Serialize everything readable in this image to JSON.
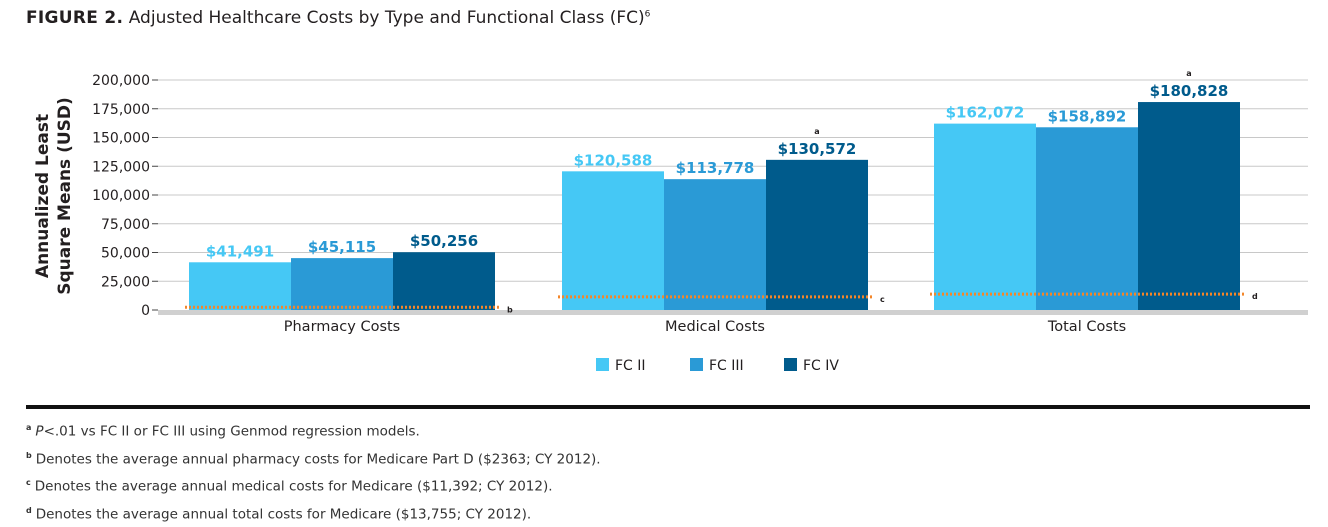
{
  "figure": {
    "label": "FIGURE 2.",
    "title": "Adjusted Healthcare Costs by Type and Functional Class (FC)",
    "title_sup": "6"
  },
  "colors": {
    "fc2": "#45c8f5",
    "fc3": "#2a9ad6",
    "fc4": "#005b8c",
    "reference_line": "#f4862a",
    "grid": "#c8c8c8",
    "axis_base": "#d0d0d0"
  },
  "chart_data": {
    "type": "bar",
    "ylabel": "Annualized Least Square Means (USD)",
    "ylabel_lines": [
      "Annualized Least",
      "Square Means (USD)"
    ],
    "ylim": [
      0,
      200000
    ],
    "yticks": [
      0,
      25000,
      50000,
      75000,
      100000,
      125000,
      150000,
      175000,
      200000
    ],
    "ytick_labels": [
      "0",
      "25,000",
      "50,000",
      "75,000",
      "100,000",
      "125,000",
      "150,000",
      "175,000",
      "200,000"
    ],
    "grid": true,
    "categories": [
      "Pharmacy Costs",
      "Medical Costs",
      "Total Costs"
    ],
    "series": [
      {
        "name": "FC II",
        "values": [
          41491,
          120588,
          162072
        ],
        "labels": [
          "$41,491",
          "$120,588",
          "$162,072"
        ]
      },
      {
        "name": "FC III",
        "values": [
          45115,
          113778,
          158892
        ],
        "labels": [
          "$45,115",
          "$113,778",
          "$158,892"
        ]
      },
      {
        "name": "FC IV",
        "values": [
          50256,
          130572,
          180828
        ],
        "labels": [
          "$50,256",
          "$130,572",
          "$180,828"
        ]
      }
    ],
    "significance_marks": [
      {
        "category": "Medical Costs",
        "series": "FC IV",
        "mark": "a"
      },
      {
        "category": "Total Costs",
        "series": "FC IV",
        "mark": "a"
      }
    ],
    "reference_lines": [
      {
        "category": "Pharmacy Costs",
        "value": 2363,
        "mark": "b"
      },
      {
        "category": "Medical Costs",
        "value": 11392,
        "mark": "c"
      },
      {
        "category": "Total Costs",
        "value": 13755,
        "mark": "d"
      }
    ],
    "legend": [
      "FC II",
      "FC III",
      "FC IV"
    ],
    "legend_position": "bottom-center"
  },
  "footnotes": [
    {
      "mark": "a",
      "italic": "P",
      "text": "<.01 vs FC II or FC III using Genmod regression models."
    },
    {
      "mark": "b",
      "italic": "",
      "text": "Denotes the average annual pharmacy costs for Medicare Part D ($2363; CY 2012)."
    },
    {
      "mark": "c",
      "italic": "",
      "text": "Denotes the average annual medical costs for Medicare ($11,392; CY 2012)."
    },
    {
      "mark": "d",
      "italic": "",
      "text": "Denotes the average annual total costs for Medicare ($13,755; CY 2012)."
    }
  ]
}
